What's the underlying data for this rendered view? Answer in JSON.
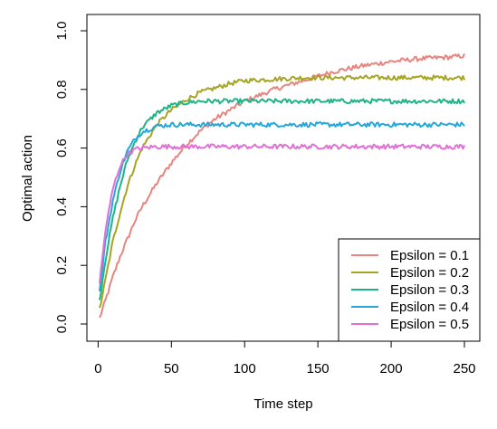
{
  "chart_data": {
    "type": "line",
    "title": "",
    "xlabel": "Time step",
    "ylabel": "Optimal action",
    "xlim": [
      1,
      250
    ],
    "ylim": [
      0.0,
      1.0
    ],
    "x_ticks": [
      0,
      50,
      100,
      150,
      200,
      250
    ],
    "x_tick_labels": [
      "0",
      "50",
      "100",
      "150",
      "200",
      "250"
    ],
    "y_ticks": [
      0.0,
      0.2,
      0.4,
      0.6,
      0.8,
      1.0
    ],
    "y_tick_labels": [
      "0.0",
      "0.2",
      "0.4",
      "0.6",
      "0.8",
      "1.0"
    ],
    "grid": false,
    "legend_position": "bottom-right",
    "x": [
      1,
      5,
      10,
      15,
      20,
      25,
      30,
      40,
      50,
      60,
      70,
      80,
      90,
      100,
      120,
      140,
      160,
      180,
      200,
      220,
      240,
      250
    ],
    "series": [
      {
        "name": "Epsilon = 0.1",
        "color": "#E7857F",
        "values": [
          0.02,
          0.08,
          0.16,
          0.23,
          0.29,
          0.35,
          0.4,
          0.48,
          0.55,
          0.61,
          0.66,
          0.7,
          0.73,
          0.76,
          0.8,
          0.83,
          0.86,
          0.88,
          0.895,
          0.905,
          0.91,
          0.915
        ]
      },
      {
        "name": "Epsilon = 0.2",
        "color": "#A6A523",
        "values": [
          0.05,
          0.15,
          0.28,
          0.38,
          0.47,
          0.54,
          0.6,
          0.68,
          0.73,
          0.765,
          0.79,
          0.805,
          0.82,
          0.83,
          0.835,
          0.84,
          0.84,
          0.84,
          0.84,
          0.84,
          0.84,
          0.84
        ]
      },
      {
        "name": "Epsilon = 0.3",
        "color": "#1FB487",
        "values": [
          0.08,
          0.22,
          0.36,
          0.47,
          0.56,
          0.62,
          0.67,
          0.72,
          0.745,
          0.755,
          0.76,
          0.76,
          0.76,
          0.76,
          0.76,
          0.76,
          0.76,
          0.76,
          0.76,
          0.76,
          0.76,
          0.76
        ]
      },
      {
        "name": "Epsilon = 0.4",
        "color": "#25A7DA",
        "values": [
          0.11,
          0.28,
          0.42,
          0.52,
          0.59,
          0.63,
          0.655,
          0.675,
          0.68,
          0.68,
          0.68,
          0.68,
          0.68,
          0.68,
          0.68,
          0.68,
          0.68,
          0.68,
          0.68,
          0.68,
          0.68,
          0.68
        ]
      },
      {
        "name": "Epsilon = 0.5",
        "color": "#E070D6",
        "values": [
          0.14,
          0.32,
          0.46,
          0.54,
          0.58,
          0.595,
          0.6,
          0.605,
          0.605,
          0.605,
          0.605,
          0.605,
          0.605,
          0.605,
          0.605,
          0.605,
          0.605,
          0.605,
          0.605,
          0.605,
          0.605,
          0.605
        ]
      }
    ]
  }
}
